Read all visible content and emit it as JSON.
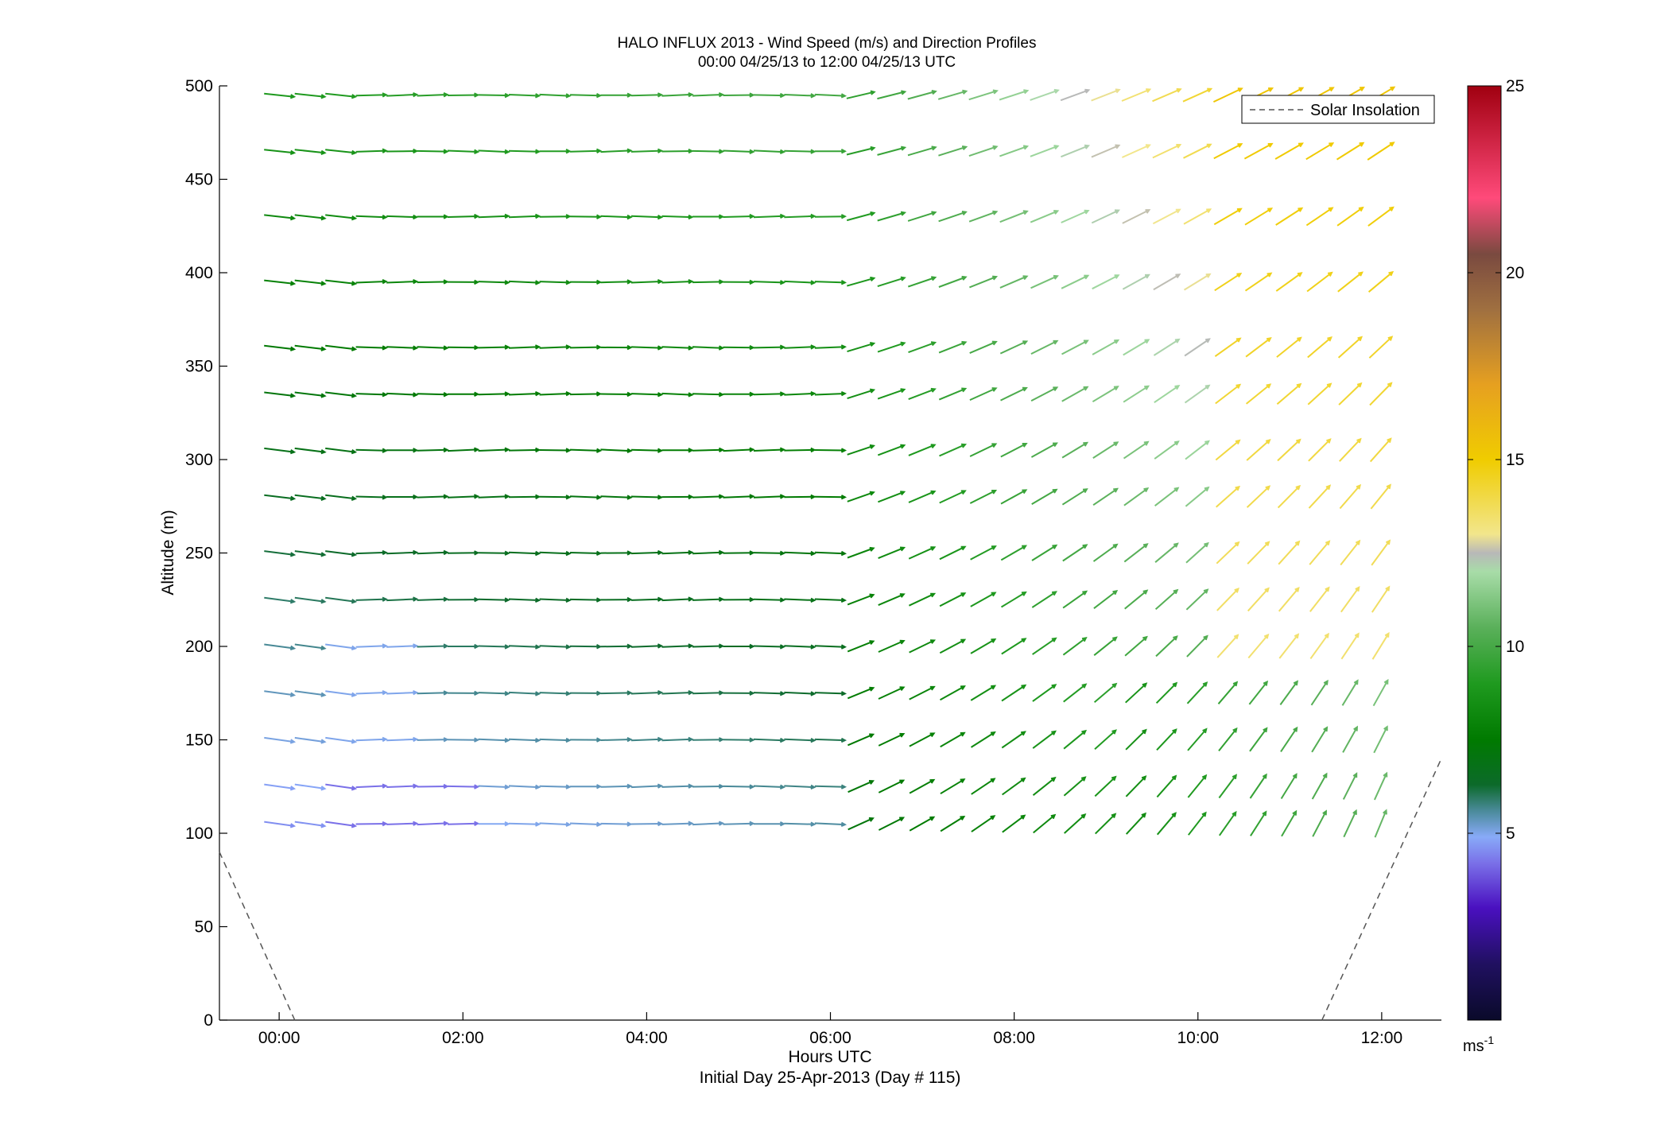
{
  "chart_data": {
    "type": "quiver",
    "title": "HALO INFLUX 2013 - Wind Speed (m/s) and Direction Profiles",
    "subtitle": "00:00 04/25/13 to 12:00 04/25/13  UTC",
    "xlabel": "Hours UTC",
    "xlabel2": "Initial Day 25-Apr-2013 (Day # 115)",
    "ylabel": "Altitude (m)",
    "xlim": [
      -0.65,
      12.65
    ],
    "ylim": [
      0,
      500
    ],
    "xticks": [
      {
        "value": 0,
        "label": "00:00"
      },
      {
        "value": 2,
        "label": "02:00"
      },
      {
        "value": 4,
        "label": "04:00"
      },
      {
        "value": 6,
        "label": "06:00"
      },
      {
        "value": 8,
        "label": "08:00"
      },
      {
        "value": 10,
        "label": "10:00"
      },
      {
        "value": 12,
        "label": "12:00"
      }
    ],
    "yticks": [
      {
        "value": 0,
        "label": "0"
      },
      {
        "value": 50,
        "label": "50"
      },
      {
        "value": 100,
        "label": "100"
      },
      {
        "value": 150,
        "label": "150"
      },
      {
        "value": 200,
        "label": "200"
      },
      {
        "value": 250,
        "label": "250"
      },
      {
        "value": 300,
        "label": "300"
      },
      {
        "value": 350,
        "label": "350"
      },
      {
        "value": 400,
        "label": "400"
      },
      {
        "value": 450,
        "label": "450"
      },
      {
        "value": 500,
        "label": "500"
      }
    ],
    "legend": {
      "position": "top-right",
      "entries": [
        {
          "label": "Solar Insolation",
          "style": "dashed",
          "color": "#555555"
        }
      ]
    },
    "colorbar": {
      "unit": "ms-1",
      "unit_base": "ms",
      "unit_exp": "-1",
      "range": [
        0,
        25
      ],
      "ticks": [
        {
          "value": 5,
          "label": "5"
        },
        {
          "value": 10,
          "label": "10"
        },
        {
          "value": 15,
          "label": "15"
        },
        {
          "value": 20,
          "label": "20"
        },
        {
          "value": 25,
          "label": "25"
        }
      ],
      "stops": [
        {
          "value": 0,
          "color": "#0a0a2a"
        },
        {
          "value": 1.5,
          "color": "#201060"
        },
        {
          "value": 3,
          "color": "#4a10c0"
        },
        {
          "value": 4.2,
          "color": "#7a70e8"
        },
        {
          "value": 4.9,
          "color": "#88aaf8"
        },
        {
          "value": 5.6,
          "color": "#4a8a9a"
        },
        {
          "value": 6.3,
          "color": "#0c6a2a"
        },
        {
          "value": 7.5,
          "color": "#007a00"
        },
        {
          "value": 9,
          "color": "#1f9a1f"
        },
        {
          "value": 10.5,
          "color": "#5ab05a"
        },
        {
          "value": 12,
          "color": "#a8dca8"
        },
        {
          "value": 12.5,
          "color": "#b8b8b8"
        },
        {
          "value": 13,
          "color": "#f2e68c"
        },
        {
          "value": 15,
          "color": "#f0cc00"
        },
        {
          "value": 17,
          "color": "#e6a020"
        },
        {
          "value": 19,
          "color": "#a07040"
        },
        {
          "value": 20.5,
          "color": "#7a4a40"
        },
        {
          "value": 22,
          "color": "#ff4a7a"
        },
        {
          "value": 25,
          "color": "#a00010"
        }
      ]
    },
    "vector_grid": {
      "altitudes": [
        105,
        125,
        150,
        175,
        200,
        225,
        250,
        280,
        305,
        335,
        360,
        395,
        430,
        465,
        495
      ],
      "time_step": 0.333,
      "time_start": 0.0,
      "time_end": 12.0,
      "gaps": [
        {
          "altitude": 105,
          "from": 2.0,
          "to": 2.3
        },
        {
          "altitude": 225,
          "from": 0.9,
          "to": 0.95
        }
      ],
      "notes": "Wind arrows: near-westerly/easterly flow aloft at 4-10 m/s through 06:00, veering to southwesterly and strengthening to 12-16 m/s by 10:00-12:00"
    },
    "solar_insolation": {
      "segments": [
        {
          "x": [
            -0.65,
            0.17
          ],
          "y": [
            90,
            0
          ]
        },
        {
          "x": [
            11.35,
            12.65
          ],
          "y": [
            0,
            140
          ]
        }
      ]
    }
  }
}
